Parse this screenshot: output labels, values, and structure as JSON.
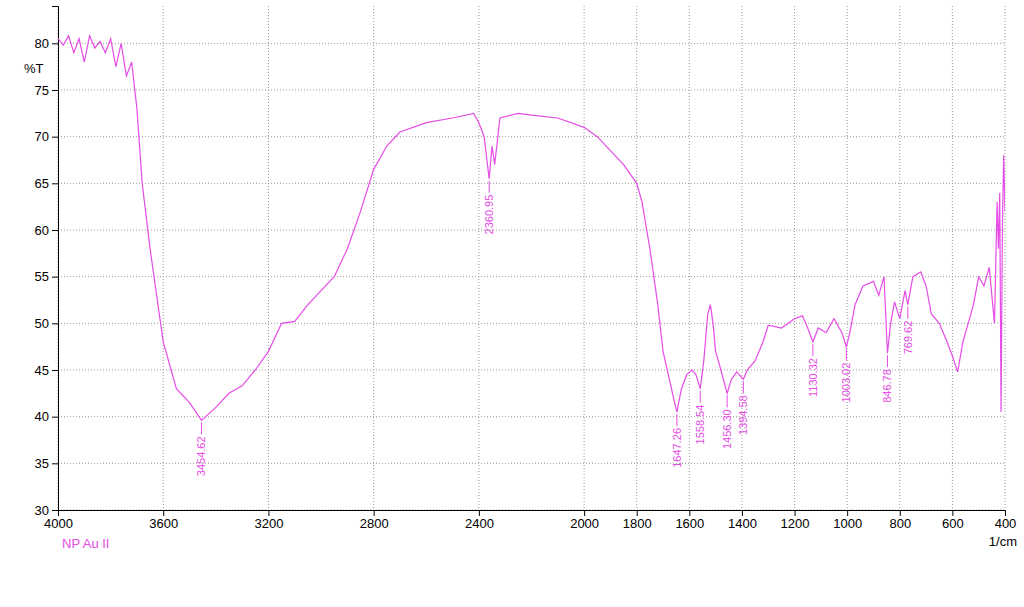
{
  "chart_data": {
    "type": "line",
    "x_label": "1/cm",
    "y_label": "%T",
    "x": [
      4000,
      3980,
      3960,
      3940,
      3920,
      3900,
      3880,
      3860,
      3840,
      3820,
      3800,
      3780,
      3760,
      3740,
      3720,
      3700,
      3680,
      3650,
      3620,
      3600,
      3550,
      3500,
      3454.62,
      3400,
      3350,
      3300,
      3250,
      3200,
      3150,
      3100,
      3050,
      3000,
      2950,
      2900,
      2850,
      2800,
      2750,
      2700,
      2600,
      2500,
      2420,
      2400,
      2380,
      2360.95,
      2350,
      2340,
      2320,
      2250,
      2200,
      2100,
      2000,
      1950,
      1900,
      1850,
      1800,
      1780,
      1750,
      1720,
      1700,
      1680,
      1660,
      1647.26,
      1630,
      1610,
      1590,
      1575,
      1558.54,
      1545,
      1530,
      1520,
      1510,
      1500,
      1480,
      1456.3,
      1440,
      1420,
      1394.58,
      1380,
      1350,
      1320,
      1300,
      1250,
      1200,
      1170,
      1150,
      1130.32,
      1110,
      1080,
      1050,
      1020,
      1003.02,
      990,
      970,
      940,
      900,
      880,
      860,
      846.78,
      835,
      820,
      800,
      780,
      769.62,
      750,
      720,
      700,
      680,
      650,
      620,
      600,
      580,
      560,
      540,
      520,
      500,
      480,
      460,
      440,
      430,
      425,
      420,
      415,
      410,
      405,
      400
    ],
    "series": [
      {
        "name": "NP Au II",
        "color": "#e64ce6",
        "values": [
          80.5,
          79.8,
          80.8,
          79,
          80.5,
          78,
          80.8,
          79.5,
          80.2,
          79,
          80.5,
          77.5,
          80,
          76.5,
          78,
          73,
          65,
          58,
          52,
          48,
          43,
          41.5,
          39.6,
          41,
          42.5,
          43.3,
          45,
          47,
          50,
          50.2,
          52,
          53.5,
          55,
          58,
          62,
          66.5,
          69,
          70.5,
          71.5,
          72,
          72.5,
          71.5,
          70,
          65.5,
          69,
          67,
          72,
          72.5,
          72.3,
          72,
          71,
          70,
          68.5,
          67,
          65,
          63,
          58,
          52,
          47,
          44.5,
          42,
          40.5,
          43,
          44.5,
          45,
          44.5,
          43,
          46,
          51,
          52,
          50,
          47,
          45,
          42.5,
          44,
          44.8,
          44,
          45,
          46,
          48,
          49.8,
          49.5,
          50.5,
          50.8,
          49.5,
          48,
          49.5,
          49,
          50.5,
          49,
          47.5,
          49,
          52,
          54,
          54.5,
          53,
          55,
          46.8,
          50,
          52.3,
          50.5,
          53.5,
          52,
          55,
          55.5,
          54,
          51,
          50,
          48,
          46.5,
          44.8,
          48,
          50,
          52,
          55,
          54,
          56,
          50,
          63,
          58,
          64,
          40.5,
          60,
          68,
          62
        ]
      }
    ],
    "xlim": [
      4000,
      400
    ],
    "xticks": [
      4000,
      3600,
      3200,
      2800,
      2400,
      2000,
      1800,
      1600,
      1400,
      1200,
      1000,
      800,
      600,
      400
    ],
    "ylim": [
      30,
      84
    ],
    "yticks": [
      30,
      35,
      40,
      45,
      50,
      55,
      60,
      65,
      70,
      75,
      80
    ],
    "grid": true,
    "legend": "bottom left",
    "annotations": [
      {
        "x": 3454.62,
        "y": 39.6,
        "label": "3454.62"
      },
      {
        "x": 2360.95,
        "y": 65.5,
        "label": "2360.95"
      },
      {
        "x": 1647.26,
        "y": 40.5,
        "label": "1647.26"
      },
      {
        "x": 1558.54,
        "y": 43,
        "label": "1558.54"
      },
      {
        "x": 1456.3,
        "y": 42.5,
        "label": "1456.30"
      },
      {
        "x": 1394.58,
        "y": 44,
        "label": "1394.58"
      },
      {
        "x": 1130.32,
        "y": 48,
        "label": "1130.32"
      },
      {
        "x": 1003.02,
        "y": 47.5,
        "label": "1003.02"
      },
      {
        "x": 846.78,
        "y": 46.8,
        "label": "846.78"
      },
      {
        "x": 769.62,
        "y": 52,
        "label": "769.62"
      }
    ]
  }
}
